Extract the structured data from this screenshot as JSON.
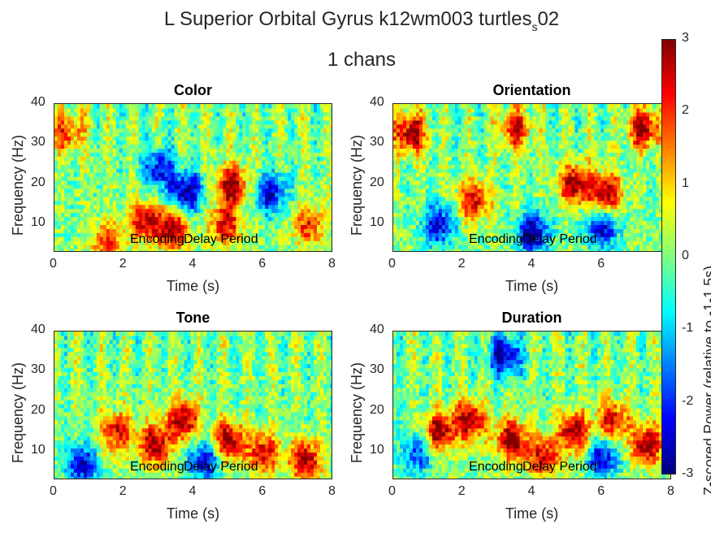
{
  "figure": {
    "title_main": "L Superior Orbital Gyrus k12wm003 turtles",
    "title_sub": "s",
    "title_end": "02",
    "subtitle": "1 chans",
    "colorbar_label": "Z-scored Power (relative to -1-1.5s)"
  },
  "chart_data": [
    {
      "type": "heatmap",
      "title": "Color",
      "xlabel": "Time (s)",
      "ylabel": "Frequency (Hz)",
      "xlim": [
        0,
        8
      ],
      "ylim": [
        3,
        40
      ],
      "xticks": [
        0,
        2,
        4,
        6,
        8
      ],
      "yticks": [
        10,
        20,
        30,
        40
      ],
      "annotations": [
        "Encoding",
        "Delay Period"
      ],
      "colormap": "jet",
      "clim": [
        -3,
        3
      ],
      "hotspots": [
        {
          "t": 3.4,
          "f": 9,
          "z": 3
        },
        {
          "t": 2.6,
          "f": 11,
          "z": 2.5
        },
        {
          "t": 5.1,
          "f": 20,
          "z": 3
        },
        {
          "t": 4.9,
          "f": 10,
          "z": 2.5
        },
        {
          "t": 0.4,
          "f": 33,
          "z": 2
        },
        {
          "t": 1.5,
          "f": 6,
          "z": 2
        },
        {
          "t": 7.3,
          "f": 10,
          "z": 2
        },
        {
          "t": 3.8,
          "f": 18,
          "z": -3
        },
        {
          "t": 6.2,
          "f": 18,
          "z": -2.5
        },
        {
          "t": 3.0,
          "f": 24,
          "z": -2.5
        }
      ]
    },
    {
      "type": "heatmap",
      "title": "Orientation",
      "xlabel": "Time (s)",
      "ylabel": "Frequency (Hz)",
      "xlim": [
        0,
        8
      ],
      "ylim": [
        3,
        40
      ],
      "xticks": [
        0,
        2,
        4,
        6
      ],
      "yticks": [
        10,
        20,
        30,
        40
      ],
      "annotations": [
        "Encoding",
        "Delay Period"
      ],
      "colormap": "jet",
      "clim": [
        -3,
        3
      ],
      "hotspots": [
        {
          "t": 0.5,
          "f": 33,
          "z": 3
        },
        {
          "t": 2.3,
          "f": 16,
          "z": 2.5
        },
        {
          "t": 5.2,
          "f": 20,
          "z": 3
        },
        {
          "t": 6.1,
          "f": 18,
          "z": 3
        },
        {
          "t": 7.2,
          "f": 34,
          "z": 3
        },
        {
          "t": 3.5,
          "f": 34,
          "z": 2.5
        },
        {
          "t": 1.3,
          "f": 10,
          "z": -2.5
        },
        {
          "t": 4.0,
          "f": 8,
          "z": -3
        },
        {
          "t": 6.0,
          "f": 9,
          "z": -2.5
        }
      ]
    },
    {
      "type": "heatmap",
      "title": "Tone",
      "xlabel": "Time (s)",
      "ylabel": "Frequency (Hz)",
      "xlim": [
        0,
        8
      ],
      "ylim": [
        3,
        40
      ],
      "xticks": [
        0,
        2,
        4,
        6,
        8
      ],
      "yticks": [
        10,
        20,
        30,
        40
      ],
      "annotations": [
        "Encoding",
        "Delay Period"
      ],
      "colormap": "jet",
      "clim": [
        -3,
        3
      ],
      "hotspots": [
        {
          "t": 2.9,
          "f": 12,
          "z": 3
        },
        {
          "t": 3.7,
          "f": 18,
          "z": 3
        },
        {
          "t": 5.0,
          "f": 13,
          "z": 3
        },
        {
          "t": 7.2,
          "f": 8,
          "z": 3
        },
        {
          "t": 1.8,
          "f": 15,
          "z": 2.5
        },
        {
          "t": 6.0,
          "f": 10,
          "z": 2.5
        },
        {
          "t": 0.8,
          "f": 7,
          "z": -2.5
        },
        {
          "t": 4.3,
          "f": 8,
          "z": -2.5
        }
      ]
    },
    {
      "type": "heatmap",
      "title": "Duration",
      "xlabel": "Time (s)",
      "ylabel": "Frequency (Hz)",
      "xlim": [
        0,
        8
      ],
      "ylim": [
        3,
        40
      ],
      "xticks": [
        0,
        2,
        4,
        6,
        8
      ],
      "yticks": [
        10,
        20,
        30,
        40
      ],
      "annotations": [
        "Encoding",
        "Delay Period"
      ],
      "colormap": "jet",
      "clim": [
        -3,
        3
      ],
      "hotspots": [
        {
          "t": 1.3,
          "f": 15,
          "z": 3
        },
        {
          "t": 2.2,
          "f": 18,
          "z": 3
        },
        {
          "t": 3.4,
          "f": 13,
          "z": 3
        },
        {
          "t": 5.2,
          "f": 15,
          "z": 3
        },
        {
          "t": 6.3,
          "f": 18,
          "z": 2.5
        },
        {
          "t": 7.3,
          "f": 12,
          "z": 3
        },
        {
          "t": 4.3,
          "f": 9,
          "z": 2.5
        },
        {
          "t": 3.2,
          "f": 34,
          "z": -3
        },
        {
          "t": 6.0,
          "f": 9,
          "z": -2.5
        },
        {
          "t": 0.7,
          "f": 10,
          "z": -2
        }
      ]
    }
  ],
  "colorbar": {
    "ticks": [
      3,
      2,
      1,
      0,
      -1,
      -2,
      -3
    ]
  }
}
